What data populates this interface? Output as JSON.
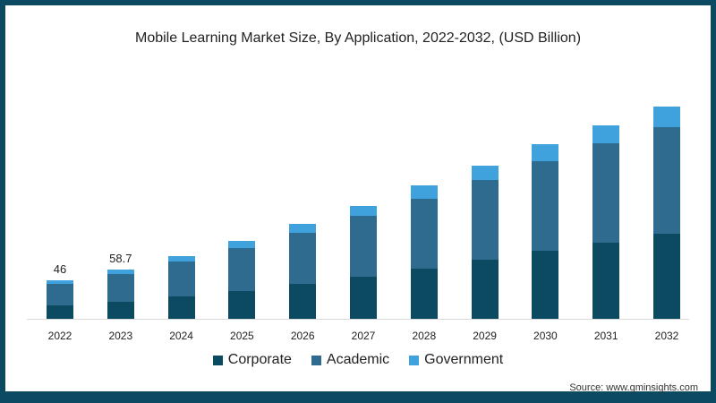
{
  "title": "Mobile Learning Market Size, By Application, 2022-2032, (USD Billion)",
  "source": "Source: www.gminsights.com",
  "colors": {
    "frame": "#0b4a60",
    "Corporate": "#0b4a60",
    "Academic": "#2e6b8e",
    "Government": "#3fa2dc"
  },
  "legend": [
    {
      "label": "Corporate",
      "color": "#0b4a60"
    },
    {
      "label": "Academic",
      "color": "#2e6b8e"
    },
    {
      "label": "Government",
      "color": "#3fa2dc"
    }
  ],
  "chart_data": {
    "type": "bar",
    "stacked": true,
    "title": "Mobile Learning Market Size, By Application, 2022-2032, (USD Billion)",
    "xlabel": "",
    "ylabel": "USD Billion",
    "categories": [
      "2022",
      "2023",
      "2024",
      "2025",
      "2026",
      "2027",
      "2028",
      "2029",
      "2030",
      "2031",
      "2032"
    ],
    "series": [
      {
        "name": "Corporate",
        "values": [
          16,
          20,
          27,
          33,
          41,
          50,
          60,
          70,
          81,
          90,
          101
        ]
      },
      {
        "name": "Academic",
        "values": [
          26,
          33.7,
          41,
          51,
          61,
          72,
          83,
          95,
          106,
          118,
          127
        ]
      },
      {
        "name": "Government",
        "values": [
          4,
          5,
          6,
          9,
          11,
          12,
          15,
          17,
          20,
          22,
          24
        ]
      }
    ],
    "annotations": [
      {
        "category": "2022",
        "label": "46"
      },
      {
        "category": "2023",
        "label": "58.7"
      }
    ],
    "grid": false,
    "legend_position": "bottom",
    "ylim": [
      0,
      260
    ]
  }
}
